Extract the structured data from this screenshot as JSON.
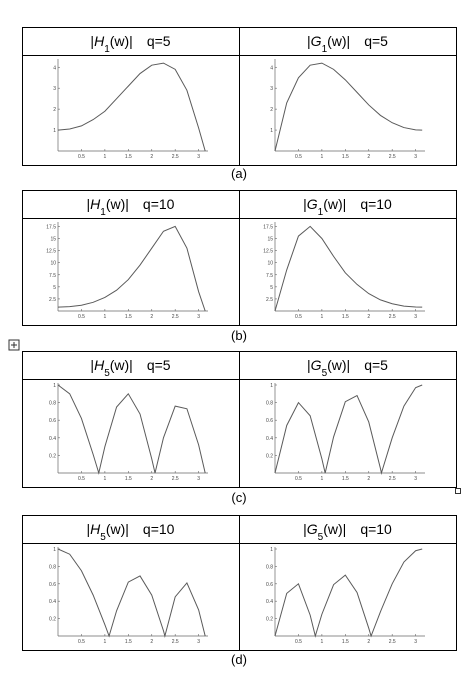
{
  "captions": [
    "(a)",
    "(b)",
    "(c)",
    "(d)"
  ],
  "chart_data": [
    {
      "type": "line",
      "title_parts": [
        "|",
        "H",
        "1",
        "(w)|",
        "q=5"
      ],
      "color": "#5a5a5a",
      "x": [
        0,
        0.25,
        0.5,
        0.75,
        1,
        1.25,
        1.5,
        1.75,
        2,
        2.25,
        2.5,
        2.75,
        3,
        3.14
      ],
      "values": [
        1.0,
        1.05,
        1.2,
        1.5,
        1.9,
        2.5,
        3.1,
        3.7,
        4.1,
        4.2,
        3.9,
        2.9,
        1.1,
        0
      ],
      "xlim": [
        0,
        3.2
      ],
      "ylim": [
        0,
        4.3
      ],
      "xticks": [
        0.5,
        1,
        1.5,
        2,
        2.5,
        3
      ],
      "yticks": [
        1,
        2,
        3,
        4
      ]
    },
    {
      "type": "line",
      "title_parts": [
        "|",
        "G",
        "1",
        "(w)|",
        "q=5"
      ],
      "color": "#5a5a5a",
      "x": [
        0,
        0.25,
        0.5,
        0.75,
        1,
        1.25,
        1.5,
        1.75,
        2,
        2.25,
        2.5,
        2.75,
        3,
        3.14
      ],
      "values": [
        0,
        2.3,
        3.5,
        4.1,
        4.2,
        3.9,
        3.4,
        2.8,
        2.2,
        1.7,
        1.35,
        1.12,
        1.01,
        1.0
      ],
      "xlim": [
        0,
        3.2
      ],
      "ylim": [
        0,
        4.3
      ],
      "xticks": [
        0.5,
        1,
        1.5,
        2,
        2.5,
        3
      ],
      "yticks": [
        1,
        2,
        3,
        4
      ]
    },
    {
      "type": "line",
      "title_parts": [
        "|",
        "H",
        "1",
        "(w)|",
        "q=10"
      ],
      "color": "#5a5a5a",
      "x": [
        0,
        0.25,
        0.5,
        0.75,
        1,
        1.25,
        1.5,
        1.75,
        2,
        2.25,
        2.5,
        2.75,
        3,
        3.14
      ],
      "values": [
        0.8,
        0.9,
        1.2,
        1.8,
        2.8,
        4.3,
        6.5,
        9.5,
        13,
        16.5,
        17.5,
        13,
        4,
        0
      ],
      "xlim": [
        0,
        3.2
      ],
      "ylim": [
        0,
        18
      ],
      "xticks": [
        0.5,
        1,
        1.5,
        2,
        2.5,
        3
      ],
      "yticks": [
        2.5,
        5,
        7.5,
        10,
        12.5,
        15,
        17.5
      ]
    },
    {
      "type": "line",
      "title_parts": [
        "|",
        "G",
        "1",
        "(w)|",
        "q=10"
      ],
      "color": "#5a5a5a",
      "x": [
        0,
        0.25,
        0.5,
        0.75,
        1,
        1.25,
        1.5,
        1.75,
        2,
        2.25,
        2.5,
        2.75,
        3,
        3.14
      ],
      "values": [
        0,
        8.5,
        15.5,
        17.5,
        15,
        11.3,
        7.9,
        5.5,
        3.6,
        2.3,
        1.5,
        1.0,
        0.82,
        0.8
      ],
      "xlim": [
        0,
        3.2
      ],
      "ylim": [
        0,
        18
      ],
      "xticks": [
        0.5,
        1,
        1.5,
        2,
        2.5,
        3
      ],
      "yticks": [
        2.5,
        5,
        7.5,
        10,
        12.5,
        15,
        17.5
      ]
    },
    {
      "type": "line",
      "title_parts": [
        "|",
        "H",
        "5",
        "(w)|",
        "q=5"
      ],
      "color": "#5a5a5a",
      "x": [
        0,
        0.25,
        0.5,
        0.75,
        0.87,
        1,
        1.25,
        1.5,
        1.75,
        2,
        2.07,
        2.25,
        2.5,
        2.75,
        3,
        3.14
      ],
      "values": [
        1,
        0.9,
        0.62,
        0.21,
        0,
        0.3,
        0.75,
        0.9,
        0.67,
        0.16,
        0,
        0.4,
        0.76,
        0.73,
        0.32,
        0
      ],
      "xlim": [
        0,
        3.2
      ],
      "ylim": [
        0,
        1
      ],
      "xticks": [
        0.5,
        1,
        1.5,
        2,
        2.5,
        3
      ],
      "yticks": [
        0.2,
        0.4,
        0.6,
        0.8,
        1
      ]
    },
    {
      "type": "line",
      "title_parts": [
        "|",
        "G",
        "5",
        "(w)|",
        "q=5"
      ],
      "color": "#5a5a5a",
      "x": [
        0,
        0.25,
        0.5,
        0.75,
        1,
        1.07,
        1.25,
        1.5,
        1.75,
        2,
        2.25,
        2.27,
        2.5,
        2.75,
        3,
        3.14
      ],
      "values": [
        0,
        0.54,
        0.8,
        0.65,
        0.16,
        0,
        0.41,
        0.81,
        0.88,
        0.58,
        0.05,
        0,
        0.4,
        0.76,
        0.97,
        1
      ],
      "xlim": [
        0,
        3.2
      ],
      "ylim": [
        0,
        1
      ],
      "xticks": [
        0.5,
        1,
        1.5,
        2,
        2.5,
        3
      ],
      "yticks": [
        0.2,
        0.4,
        0.6,
        0.8,
        1
      ]
    },
    {
      "type": "line",
      "title_parts": [
        "|",
        "H",
        "5",
        "(w)|",
        "q=10"
      ],
      "color": "#5a5a5a",
      "x": [
        0,
        0.25,
        0.5,
        0.75,
        1,
        1.09,
        1.25,
        1.5,
        1.75,
        2,
        2.25,
        2.28,
        2.5,
        2.75,
        3,
        3.14
      ],
      "values": [
        1,
        0.94,
        0.75,
        0.47,
        0.13,
        0,
        0.29,
        0.62,
        0.69,
        0.47,
        0.06,
        0,
        0.45,
        0.61,
        0.3,
        0
      ],
      "xlim": [
        0,
        3.2
      ],
      "ylim": [
        0,
        1
      ],
      "xticks": [
        0.5,
        1,
        1.5,
        2,
        2.5,
        3
      ],
      "yticks": [
        0.2,
        0.4,
        0.6,
        0.8,
        1
      ]
    },
    {
      "type": "line",
      "title_parts": [
        "|",
        "G",
        "5",
        "(w)|",
        "q=10"
      ],
      "color": "#5a5a5a",
      "x": [
        0,
        0.25,
        0.5,
        0.75,
        0.86,
        1,
        1.25,
        1.5,
        1.75,
        2,
        2.05,
        2.25,
        2.5,
        2.75,
        3,
        3.14
      ],
      "values": [
        0,
        0.49,
        0.6,
        0.24,
        0,
        0.25,
        0.59,
        0.7,
        0.5,
        0.09,
        0,
        0.28,
        0.6,
        0.85,
        0.98,
        1
      ],
      "xlim": [
        0,
        3.2
      ],
      "ylim": [
        0,
        1
      ],
      "xticks": [
        0.5,
        1,
        1.5,
        2,
        2.5,
        3
      ],
      "yticks": [
        0.2,
        0.4,
        0.6,
        0.8,
        1
      ]
    }
  ]
}
